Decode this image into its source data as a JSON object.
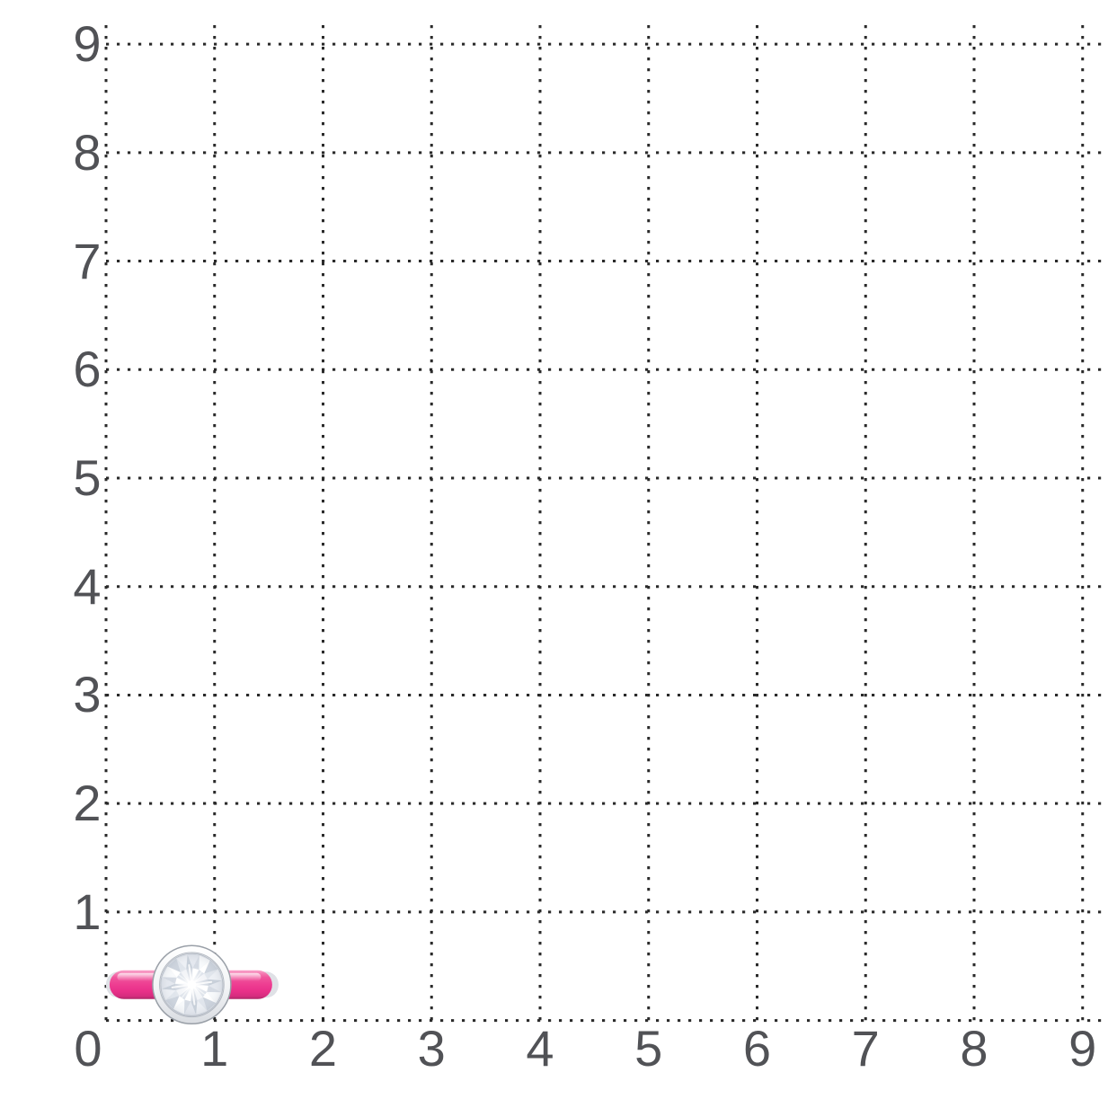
{
  "chart_data": {
    "type": "scatter",
    "title": "",
    "xlabel": "",
    "ylabel": "",
    "x_ticks": [
      "0",
      "1",
      "2",
      "3",
      "4",
      "5",
      "6",
      "7",
      "8",
      "9"
    ],
    "y_ticks": [
      "1",
      "2",
      "3",
      "4",
      "5",
      "6",
      "7",
      "8",
      "9"
    ],
    "xlim": [
      0,
      9.2
    ],
    "ylim": [
      0,
      9.2
    ],
    "grid": "dotted",
    "legend": "none",
    "points": [
      {
        "label": "pink-enamel-bezel-diamond-ring",
        "x": 0.79,
        "y": 0.33
      }
    ]
  },
  "colors": {
    "background": "#ffffff",
    "grid_dots": "#2a2a2a",
    "tick_labels": "#515256",
    "ring_pink_light": "#f9a6cb",
    "ring_pink": "#ee3f92",
    "ring_pink_deep": "#d62c7e",
    "ring_pink_dark": "#ad2767",
    "metal_silver": "#dfe1e6",
    "bezel_edge": "#9aa0a8",
    "bezel_light": "#ffffff",
    "bezel_shade": "#d9dce1",
    "diamond_bg": "#dfe4eb",
    "diamond_rim": "#b6bcc6",
    "facet_palettes": {
      "outer": [
        "#e4e8ef",
        "#f8fafc",
        "#ccd3dd",
        "#edf0f5"
      ],
      "outer_gap": [
        "#d4dae3",
        "#ffffff",
        "#e0e5ec",
        "#c7cfd9"
      ],
      "inner": [
        "#ffffff",
        "#d9dfe8",
        "#f0f2f6",
        "#cdd4de"
      ],
      "inner_gap": [
        "#e9edf3",
        "#ffffff",
        "#d2d8e2",
        "#f4f6f9"
      ]
    }
  }
}
